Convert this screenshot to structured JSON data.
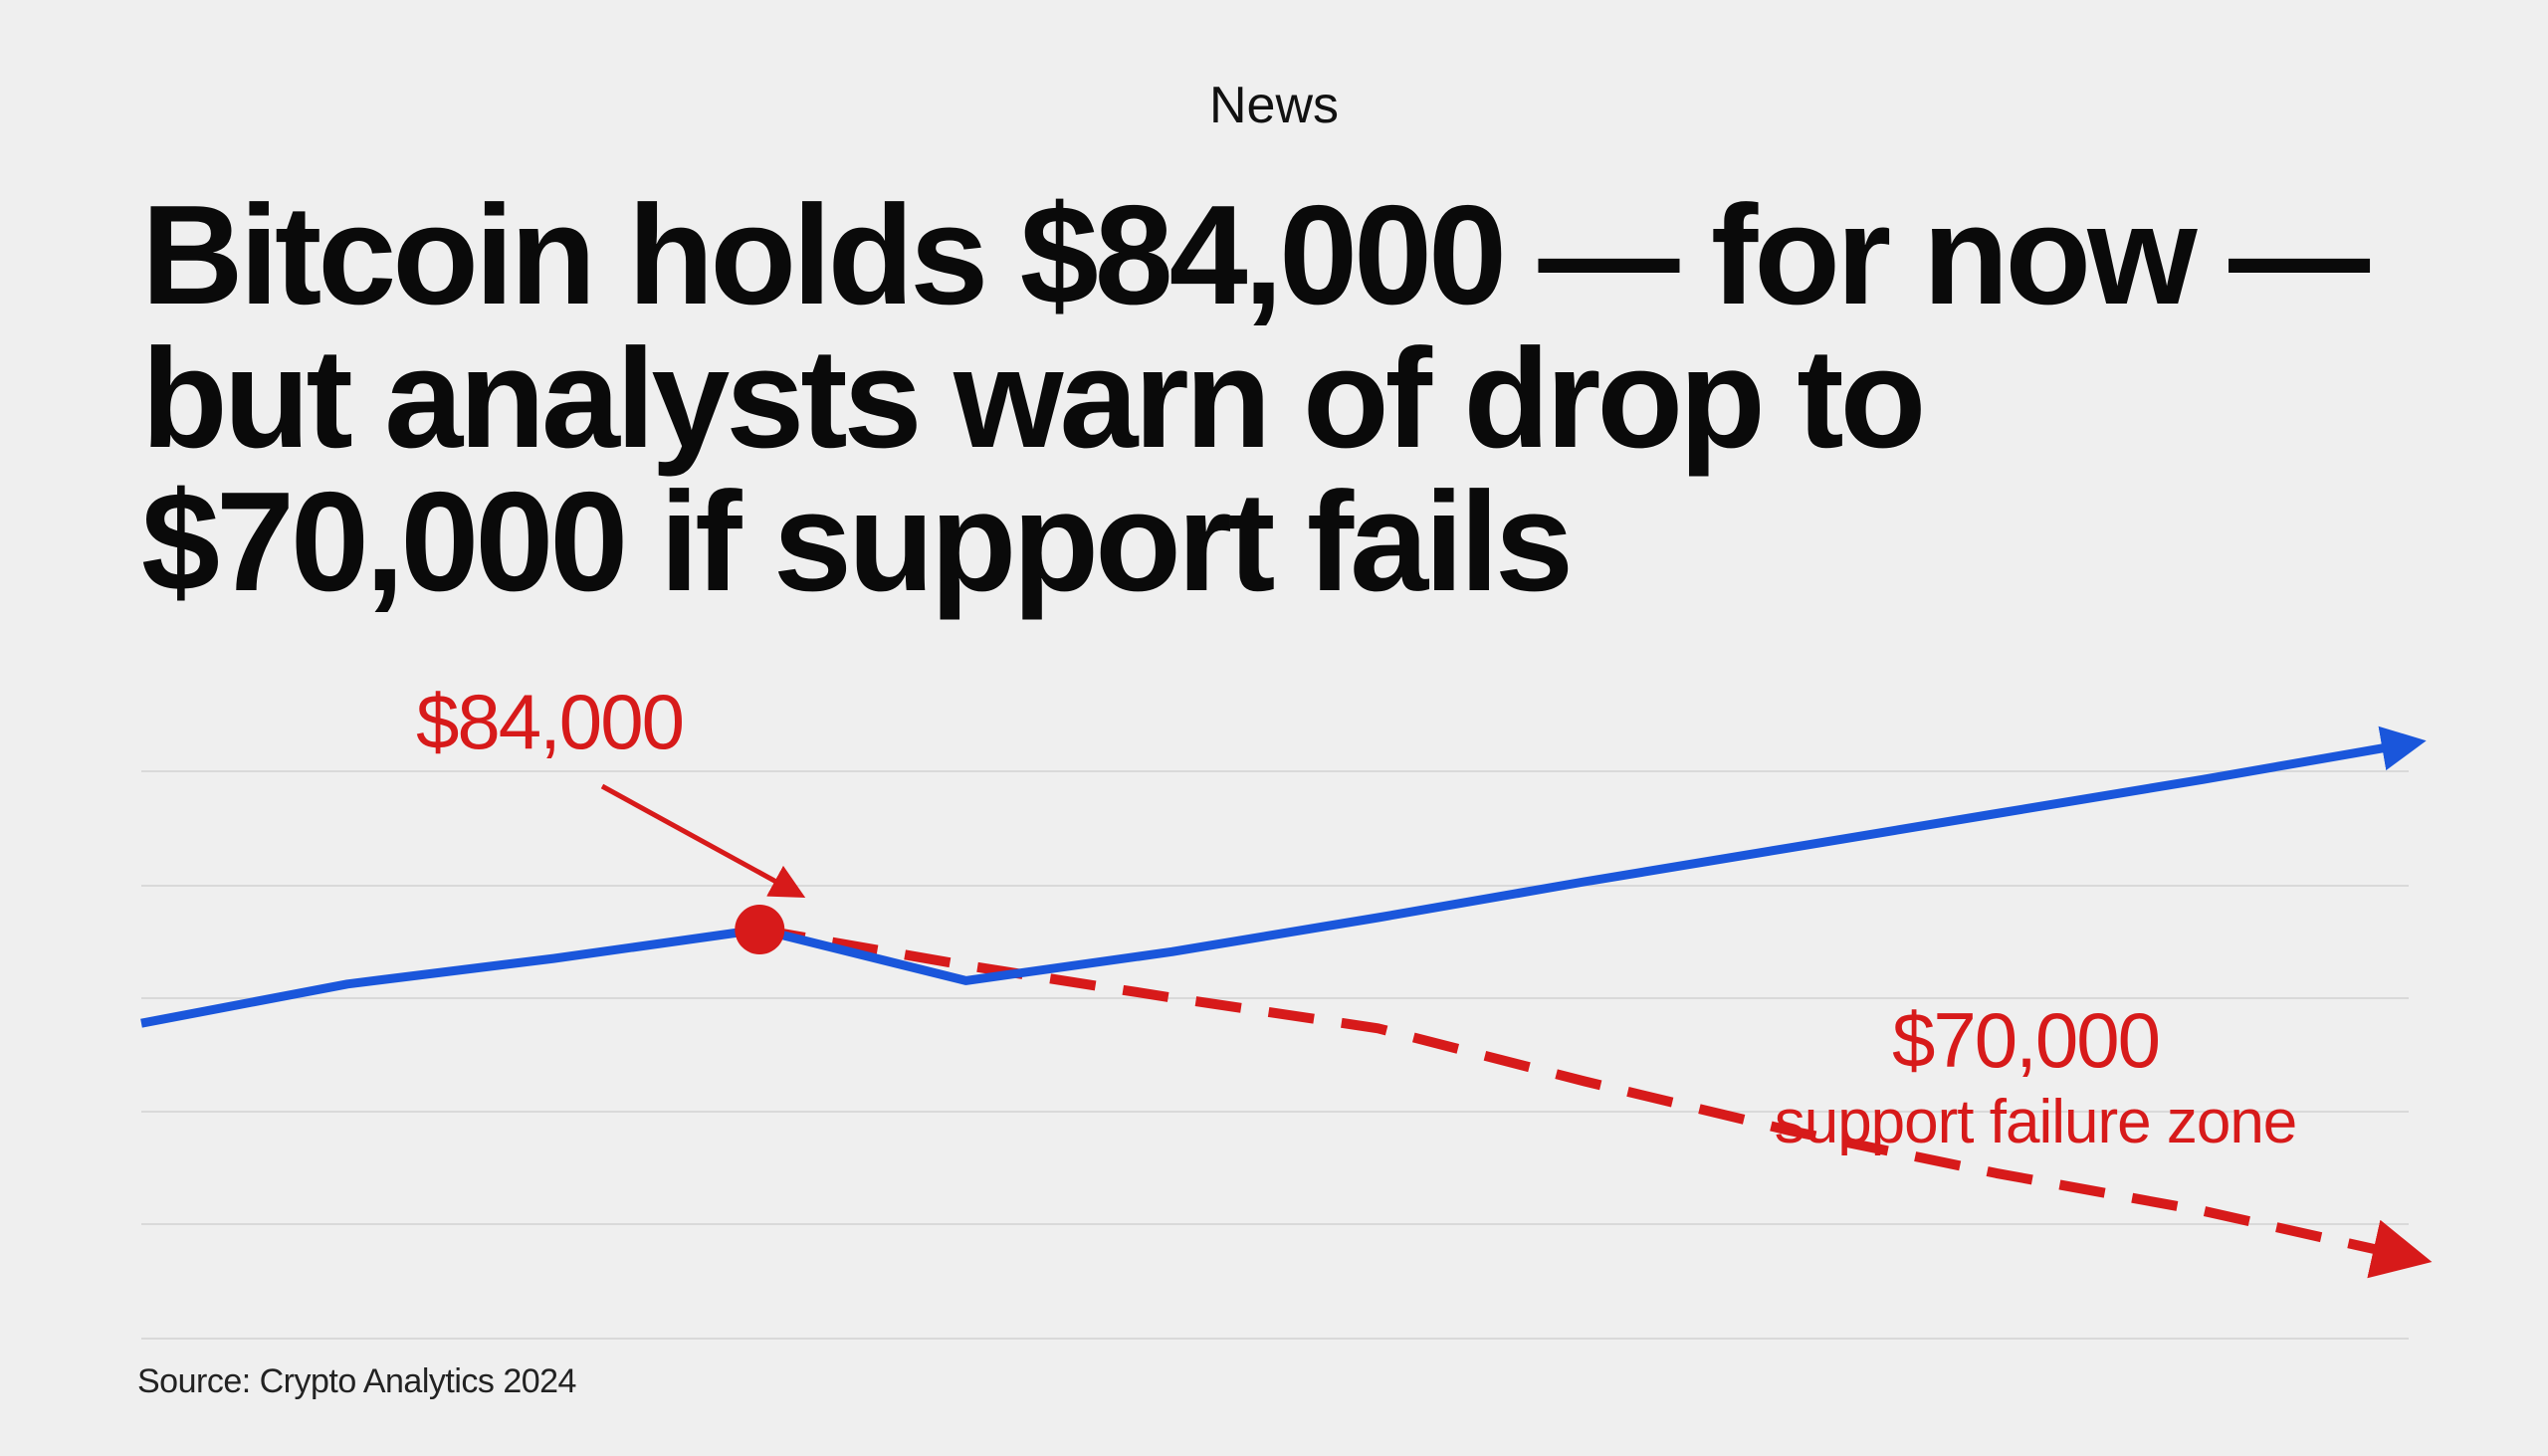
{
  "kicker": "News",
  "headline": {
    "line1": "Bitcoin holds $84,000 — for now —",
    "line2": "but analysts warn of drop to",
    "line3": "$70,000 if support fails"
  },
  "source": "Source: Crypto Analytics 2024",
  "colors": {
    "background": "#efefef",
    "price_line": "#1a56db",
    "forecast": "#d71a1a",
    "grid": "#d9d9d9"
  },
  "chart_data": {
    "type": "line",
    "title": "",
    "xlabel": "",
    "ylabel": "",
    "grid": true,
    "ylim": [
      60000,
      100000
    ],
    "series": [
      {
        "style": "solid",
        "color": "#1a56db",
        "arrow_end": true,
        "x": [
          0,
          1,
          2,
          3,
          4,
          5,
          6,
          7,
          8,
          9,
          10,
          11
        ],
        "values": [
          78500,
          80800,
          82300,
          84000,
          81000,
          82700,
          84700,
          86800,
          88800,
          90800,
          92800,
          94900
        ]
      },
      {
        "style": "dashed",
        "color": "#d71a1a",
        "arrow_end": true,
        "x": [
          3,
          4,
          5,
          6,
          7,
          8,
          9,
          10,
          11
        ],
        "values": [
          84000,
          81900,
          80000,
          78200,
          75100,
          72200,
          69700,
          67500,
          64800
        ]
      }
    ],
    "markers": [
      {
        "x": 3,
        "value": 84000
      }
    ],
    "annotations": [
      {
        "label": "$84,000",
        "target_x": 3,
        "target_value": 84000
      },
      {
        "label": "$70,000",
        "sublabel": "support failure zone"
      }
    ]
  }
}
